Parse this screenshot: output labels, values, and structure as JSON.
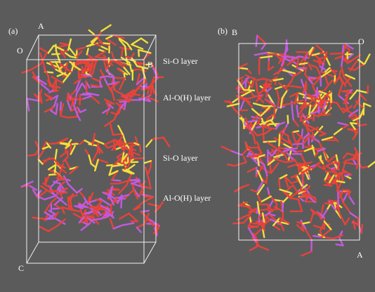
{
  "panel_a": {
    "label": "(a)",
    "axes": {
      "a": "A",
      "o": "O",
      "b": "B",
      "c": "C"
    },
    "layers": [
      "Si-O layer",
      "Al-O(H) layer",
      "Si-O layer",
      "Al-O(H) layer"
    ]
  },
  "panel_b": {
    "label": "(b)",
    "axes": {
      "b": "B",
      "o": "O",
      "a": "A"
    }
  }
}
